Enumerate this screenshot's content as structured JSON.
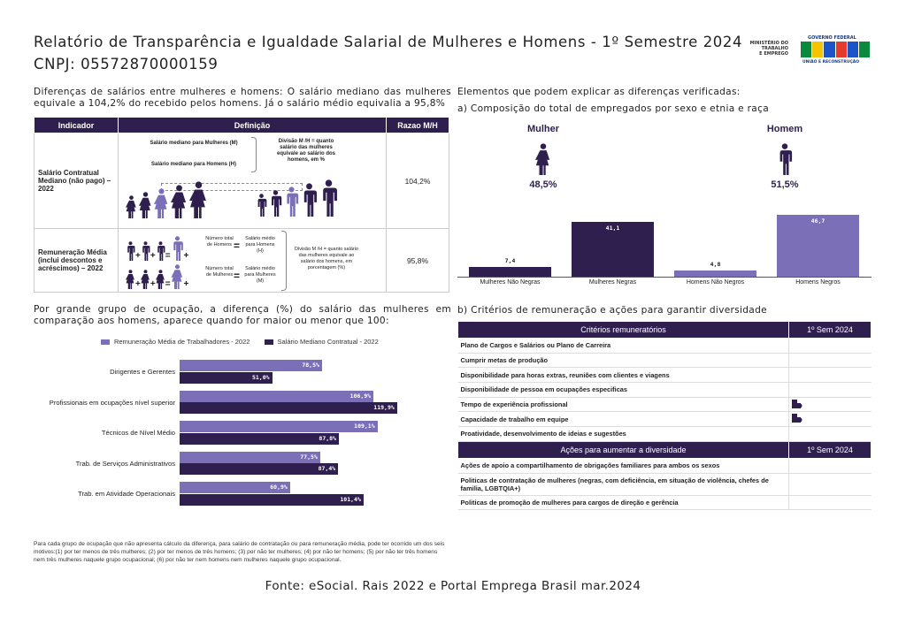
{
  "header": {
    "title": "Relatório de Transparência e Igualdade Salarial de Mulheres e Homens - 1º Semestre 2024",
    "cnpj": "CNPJ: 05572870000159"
  },
  "logo": {
    "ministry": [
      "MINISTÉRIO DO",
      "TRABALHO",
      "E EMPREGO"
    ],
    "gov": "GOVERNO FEDERAL",
    "brasil": "BRASIL",
    "tagline": "UNIÃO E RECONSTRUÇÃO"
  },
  "left": {
    "intro": "Diferenças de salários entre mulheres e homens: O salário mediano das mulheres equivale a 104,2% do recebido pelos homens. Já o salário médio equivalia a 95,8%",
    "table": {
      "headers": [
        "Indicador",
        "Definição",
        "Razao M/H"
      ],
      "row1": {
        "indicator": "Salário Contratual Mediano (não pago) – 2022",
        "def_m": "Salário mediano para Mulheres (M)",
        "def_h": "Salário mediano para Homens (H)",
        "div": "Divisão M /H = quanto salário das mulheres equivale ao salário dos homens, em %",
        "value": "104,2%"
      },
      "row2": {
        "indicator": "Remuneração Média (inclui descontos e acréscimos) – 2022",
        "n_h": "Número total de Homens",
        "s_h": "Salário médio para Homens (H)",
        "n_m": "Número total de Mulheres",
        "s_m": "Salário médio para Mulheres (M)",
        "div": "Divisão M /H = quanto salário das mulheres equivale ao salário dos homens, em porcentagem (%)",
        "value": "95,8%"
      }
    },
    "section2": "Por grande grupo de ocupação, a diferença (%) do salário das mulheres em comparação aos homens, aparece quando for maior ou menor que 100:",
    "footnote": "Para cada grupo de ocupação que não apresenta cálculo da diferença, para salário de contratação ou para remuneração média, pode ter ocorrido um dos seis motivos:(1) por ter menos de três mulheres; (2) por ter menos de três homens; (3) por não ter mulheres; (4) por não ter homens; (5) por não ter três homens nem três mulheres naquele grupo ocupacional; (6) por não ter nem homens nem mulheres naquele grupo ocupacional."
  },
  "right": {
    "heading": "Elementos que podem explicar as diferenças verificadas:",
    "a_title": "a) Composição do total de empregados por sexo e etnia e raça",
    "mulher": {
      "label": "Mulher",
      "pct": "48,5%"
    },
    "homem": {
      "label": "Homem",
      "pct": "51,5%"
    },
    "b_title": "b) Critérios de remuneração e ações para garantir diversidade",
    "criteria_header": [
      "Critérios remuneratórios",
      "1º Sem 2024"
    ],
    "criteria": [
      {
        "label": "Plano de Cargos e Salários ou Plano de Carreira",
        "mark": false
      },
      {
        "label": "Cumprir metas de produção",
        "mark": false
      },
      {
        "label": "Disponibilidade para horas extras, reuniões com clientes e viagens",
        "mark": false
      },
      {
        "label": "Disponibilidade de pessoa em ocupações especificas",
        "mark": false
      },
      {
        "label": "Tempo de experiência profissional",
        "mark": true
      },
      {
        "label": "Capacidade de trabalho em equipe",
        "mark": true
      },
      {
        "label": "Proatividade, desenvolvimento de ideias e sugestões",
        "mark": false
      }
    ],
    "actions_header": [
      "Ações para aumentar a diversidade",
      "1º Sem 2024"
    ],
    "actions": [
      {
        "label": "Ações de apoio a compartilhamento de obrigações familiares para ambos os sexos"
      },
      {
        "label": "Politicas de contratação de mulheres (negras, com deficiência, em situação de violência, chefes de familia, LGBTQIA+)"
      },
      {
        "label": "Politicas de promoção de mulheres para cargos de direção e gerência"
      }
    ]
  },
  "source": "Fonte: eSocial. Rais 2022 e Portal Emprega Brasil mar.2024",
  "colors": {
    "dark": "#2e1f4f",
    "light": "#7b6fb8"
  },
  "chart_data": [
    {
      "type": "bar",
      "orientation": "horizontal",
      "legend": "top",
      "categories": [
        "Dirigentes e Gerentes",
        "Profissionais em ocupações nível superior",
        "Técnicos de Nível Médio",
        "Trab. de Serviços Administrativos",
        "Trab. em Atividade Operacionais"
      ],
      "series": [
        {
          "name": "Remuneração Média de Trabalhadores - 2022",
          "color": "#7b6fb8",
          "values": [
            78.5,
            106.9,
            109.1,
            77.5,
            60.9
          ],
          "labels": [
            "78,5%",
            "106,9%",
            "109,1%",
            "77,5%",
            "60,9%"
          ]
        },
        {
          "name": "Salário Mediano Contratual - 2022",
          "color": "#2e1f4f",
          "values": [
            51.0,
            119.9,
            87.8,
            87.4,
            101.4
          ],
          "labels": [
            "51,0%",
            "119,9%",
            "87,8%",
            "87,4%",
            "101,4%"
          ]
        }
      ]
    },
    {
      "type": "bar",
      "orientation": "vertical",
      "categories": [
        "Mulheres Não Negras",
        "Mulheres Negras",
        "Homens Não Negros",
        "Homens Negros"
      ],
      "values": [
        7.4,
        41.1,
        4.8,
        46.7
      ],
      "labels": [
        "7,4",
        "41,1",
        "4,8",
        "46,7"
      ],
      "colors": [
        "#2e1f4f",
        "#2e1f4f",
        "#7b6fb8",
        "#7b6fb8"
      ]
    }
  ]
}
